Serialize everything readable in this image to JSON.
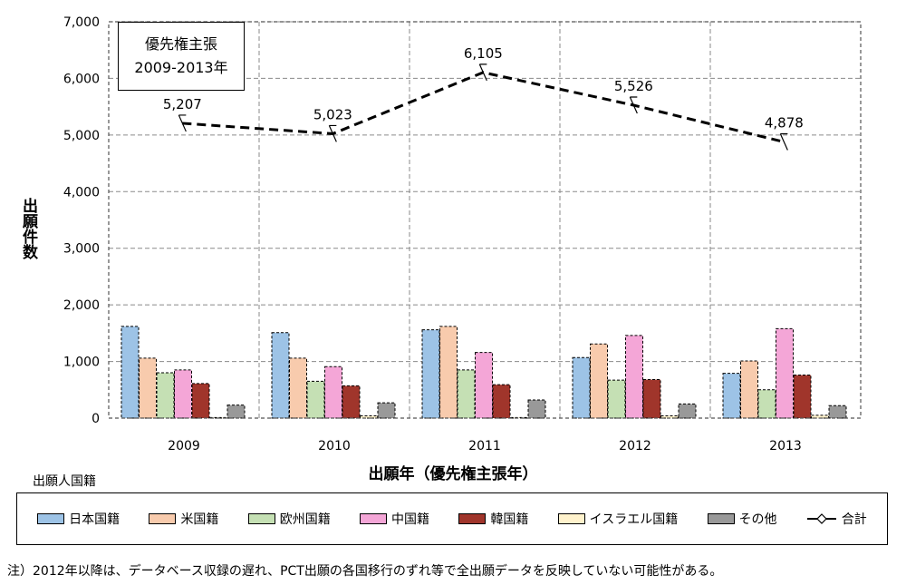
{
  "chart_data": {
    "type": "bar",
    "categories": [
      "2009",
      "2010",
      "2011",
      "2012",
      "2013"
    ],
    "xlabel": "出願年（優先権主張年）",
    "ylabel": "出願件数",
    "ylim": [
      0,
      7000
    ],
    "yticks": [
      "0",
      "1,000",
      "2,000",
      "3,000",
      "4,000",
      "5,000",
      "6,000",
      "7,000"
    ],
    "grid": true,
    "legend_title": "出願人国籍",
    "legend_position": "bottom",
    "series": [
      {
        "name": "日本国籍",
        "color": "#9dc3e6",
        "values": [
          1620,
          1510,
          1560,
          1070,
          790
        ]
      },
      {
        "name": "米国籍",
        "color": "#f8cbad",
        "values": [
          1060,
          1060,
          1620,
          1310,
          1010
        ]
      },
      {
        "name": "欧州国籍",
        "color": "#c5e0b4",
        "values": [
          800,
          650,
          850,
          670,
          500
        ]
      },
      {
        "name": "中国籍",
        "color": "#f4a6d7",
        "values": [
          850,
          910,
          1160,
          1460,
          1580
        ]
      },
      {
        "name": "韓国籍",
        "color": "#a0352b",
        "values": [
          610,
          570,
          590,
          680,
          760
        ]
      },
      {
        "name": "イスラエル国籍",
        "color": "#fff2cc",
        "values": [
          10,
          40,
          10,
          40,
          50
        ]
      },
      {
        "name": "その他",
        "color": "#999999",
        "values": [
          230,
          270,
          320,
          250,
          220
        ]
      }
    ],
    "line": {
      "name": "合計",
      "values": [
        5207,
        5023,
        6105,
        5526,
        4878
      ],
      "labels": [
        "5,207",
        "5,023",
        "6,105",
        "5,526",
        "4,878"
      ]
    },
    "annotation": {
      "line1": "優先権主張",
      "line2": "2009-2013年"
    }
  },
  "note": "注）2012年以降は、データベース収録の遅れ、PCT出願の各国移行のずれ等で全出願データを反映していない可能性がある。"
}
